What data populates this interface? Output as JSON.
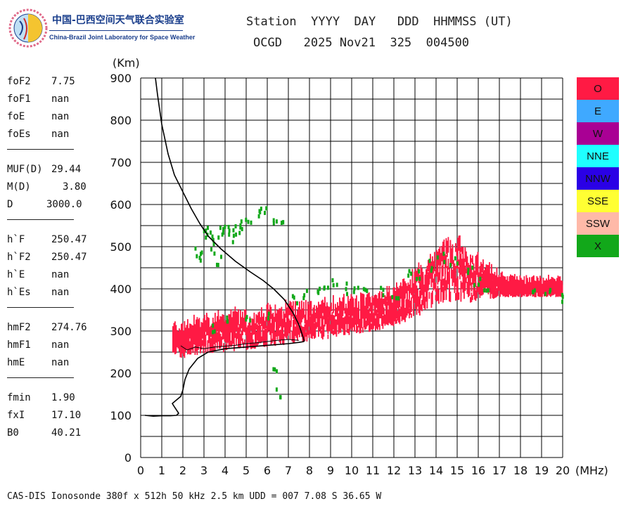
{
  "logo": {
    "cn": "中国-巴西空间天气联合实验室",
    "en": "China-Brazil Joint Laboratory for Space Weather"
  },
  "header": {
    "line1": "Station  YYYY  DAY   DDD  HHMMSS (UT)",
    "line2": "OCGD   2025 Nov21  325  004500"
  },
  "params": {
    "group1": [
      {
        "name": "foF2",
        "value": "7.75"
      },
      {
        "name": "foF1",
        "value": "nan"
      },
      {
        "name": "foE",
        "value": "nan"
      },
      {
        "name": "foEs",
        "value": "nan"
      }
    ],
    "group2": [
      {
        "name": "MUF(D)",
        "value": "29.44"
      },
      {
        "name": "M(D)",
        "value": "3.80"
      },
      {
        "name": "D",
        "value": "3000.0"
      }
    ],
    "group3": [
      {
        "name": "h`F",
        "value": "250.47"
      },
      {
        "name": "h`F2",
        "value": "250.47"
      },
      {
        "name": "h`E",
        "value": "nan"
      },
      {
        "name": "h`Es",
        "value": "nan"
      }
    ],
    "group4": [
      {
        "name": "hmF2",
        "value": "274.76"
      },
      {
        "name": "hmF1",
        "value": "nan"
      },
      {
        "name": "hmE",
        "value": "nan"
      }
    ],
    "group5": [
      {
        "name": "fmin",
        "value": "1.90"
      },
      {
        "name": "fxI",
        "value": "17.10"
      },
      {
        "name": "B0",
        "value": "40.21"
      }
    ]
  },
  "legend": [
    {
      "label": "O",
      "color": "#ff1a44"
    },
    {
      "label": "E",
      "color": "#3fa9ff"
    },
    {
      "label": "W",
      "color": "#a90094"
    },
    {
      "label": "NNE",
      "color": "#1fffff"
    },
    {
      "label": "NNW",
      "color": "#2a00e6"
    },
    {
      "label": "SSE",
      "color": "#ffff33"
    },
    {
      "label": "SSW",
      "color": "#ffb9a8"
    },
    {
      "label": "X",
      "color": "#12a81a"
    }
  ],
  "footer": "CAS-DIS Ionosonde 380f x 512h 50 kHz 2.5 km UDD = 007 7.08 S 36.65 W",
  "chart_data": {
    "type": "scatter",
    "xlabel": "(MHz)",
    "ylabel": "(Km)",
    "xlim": [
      0,
      20
    ],
    "ylim": [
      0,
      900
    ],
    "xticks": [
      0,
      1,
      2,
      3,
      4,
      5,
      6,
      7,
      8,
      9,
      10,
      11,
      12,
      13,
      14,
      15,
      16,
      17,
      18,
      19,
      20
    ],
    "yticks": [
      0,
      100,
      200,
      300,
      400,
      500,
      600,
      700,
      800,
      900
    ],
    "grid": true,
    "legend_position": "right",
    "o_trace_band": [
      [
        1.5,
        240,
        290
      ],
      [
        2.0,
        235,
        295
      ],
      [
        2.5,
        240,
        305
      ],
      [
        3.0,
        245,
        310
      ],
      [
        3.5,
        248,
        315
      ],
      [
        4.0,
        250,
        318
      ],
      [
        4.5,
        252,
        320
      ],
      [
        5.0,
        255,
        322
      ],
      [
        5.5,
        258,
        325
      ],
      [
        6.0,
        262,
        330
      ],
      [
        6.5,
        265,
        335
      ],
      [
        7.0,
        268,
        340
      ],
      [
        7.5,
        272,
        345
      ],
      [
        8.0,
        275,
        340
      ],
      [
        8.5,
        278,
        345
      ],
      [
        9.0,
        282,
        350
      ],
      [
        9.5,
        285,
        352
      ],
      [
        10.0,
        290,
        355
      ],
      [
        10.5,
        295,
        358
      ],
      [
        11.0,
        298,
        362
      ],
      [
        11.5,
        305,
        370
      ],
      [
        12.0,
        312,
        380
      ],
      [
        12.5,
        320,
        395
      ],
      [
        13.0,
        330,
        420
      ],
      [
        13.5,
        345,
        440
      ],
      [
        14.0,
        360,
        470
      ],
      [
        14.5,
        365,
        490
      ],
      [
        15.0,
        370,
        500
      ],
      [
        15.5,
        365,
        470
      ],
      [
        16.0,
        370,
        460
      ],
      [
        16.5,
        375,
        430
      ],
      [
        17.0,
        378,
        410
      ],
      [
        18.0,
        380,
        395
      ],
      [
        19.0,
        380,
        395
      ],
      [
        20.0,
        380,
        395
      ]
    ],
    "x_scatter": [
      [
        2.6,
        490
      ],
      [
        2.9,
        480
      ],
      [
        3.1,
        530
      ],
      [
        3.2,
        545
      ],
      [
        3.3,
        500
      ],
      [
        3.5,
        520
      ],
      [
        3.6,
        470
      ],
      [
        3.8,
        545
      ],
      [
        4.0,
        555
      ],
      [
        4.2,
        540
      ],
      [
        4.4,
        525
      ],
      [
        4.6,
        550
      ],
      [
        4.8,
        555
      ],
      [
        5.1,
        560
      ],
      [
        5.5,
        585
      ],
      [
        5.8,
        595
      ],
      [
        6.3,
        560
      ],
      [
        6.8,
        565
      ],
      [
        6.4,
        205
      ],
      [
        6.5,
        155
      ],
      [
        3.5,
        310
      ],
      [
        4.2,
        330
      ],
      [
        5.0,
        340
      ],
      [
        6.0,
        345
      ],
      [
        7.2,
        380
      ],
      [
        7.8,
        390
      ],
      [
        8.3,
        395
      ],
      [
        8.8,
        415
      ],
      [
        9.2,
        420
      ],
      [
        9.8,
        405
      ],
      [
        10.2,
        410
      ],
      [
        10.7,
        395
      ],
      [
        11.3,
        395
      ],
      [
        12.0,
        390
      ],
      [
        12.6,
        440
      ],
      [
        13.2,
        440
      ],
      [
        13.6,
        460
      ],
      [
        14.2,
        480
      ],
      [
        14.8,
        470
      ],
      [
        15.5,
        450
      ],
      [
        15.9,
        420
      ],
      [
        16.4,
        410
      ],
      [
        18.5,
        390
      ],
      [
        19.3,
        395
      ],
      [
        19.9,
        385
      ]
    ],
    "virtual_height_profile": [
      [
        0.7,
        900
      ],
      [
        0.8,
        860
      ],
      [
        1.0,
        790
      ],
      [
        1.3,
        720
      ],
      [
        1.6,
        670
      ],
      [
        2.0,
        630
      ],
      [
        2.4,
        590
      ],
      [
        2.8,
        555
      ],
      [
        3.2,
        525
      ],
      [
        3.8,
        495
      ],
      [
        4.5,
        465
      ],
      [
        5.2,
        440
      ],
      [
        5.8,
        420
      ],
      [
        6.3,
        400
      ],
      [
        6.8,
        375
      ],
      [
        7.2,
        345
      ],
      [
        7.5,
        315
      ],
      [
        7.7,
        285
      ],
      [
        7.75,
        275
      ]
    ],
    "true_height_profile": [
      [
        0.2,
        100
      ],
      [
        0.6,
        98
      ],
      [
        1.0,
        99
      ],
      [
        1.4,
        99
      ],
      [
        1.7,
        100
      ],
      [
        1.8,
        105
      ],
      [
        1.6,
        120
      ],
      [
        1.5,
        128
      ],
      [
        1.9,
        145
      ],
      [
        2.0,
        160
      ],
      [
        2.1,
        185
      ],
      [
        2.3,
        210
      ],
      [
        2.7,
        235
      ],
      [
        3.2,
        250
      ],
      [
        4.0,
        258
      ],
      [
        5.0,
        262
      ],
      [
        6.0,
        266
      ],
      [
        7.0,
        270
      ],
      [
        7.5,
        273
      ],
      [
        7.75,
        275
      ]
    ],
    "o_trace_line": [
      [
        1.9,
        265
      ],
      [
        2.2,
        255
      ],
      [
        2.6,
        262
      ],
      [
        3.0,
        258
      ],
      [
        3.5,
        262
      ],
      [
        4.0,
        264
      ],
      [
        4.5,
        266
      ],
      [
        5.0,
        270
      ],
      [
        5.5,
        272
      ],
      [
        6.0,
        275
      ],
      [
        6.5,
        278
      ],
      [
        7.0,
        280
      ],
      [
        7.5,
        278
      ]
    ]
  }
}
